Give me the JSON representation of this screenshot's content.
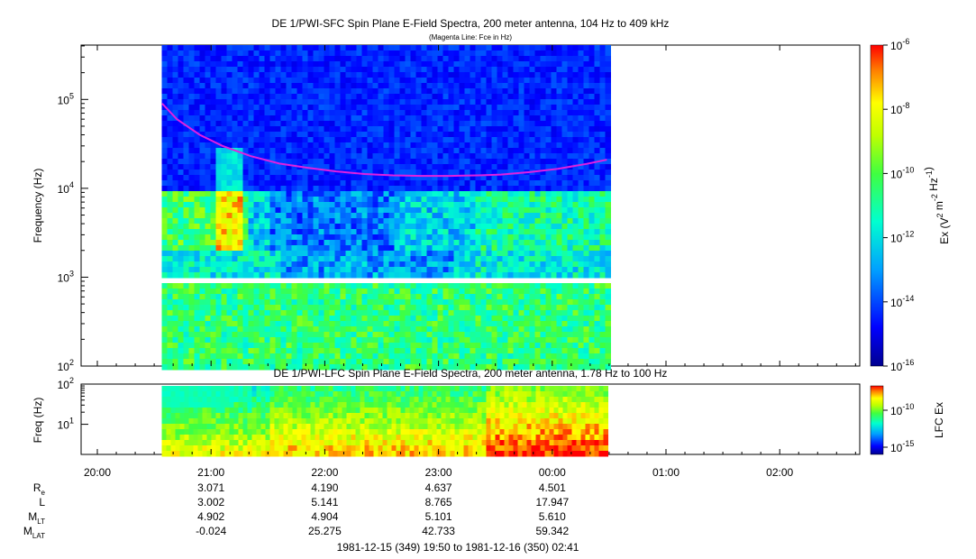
{
  "header": {
    "title": "DE 1/PWI-SFC  Spin Plane E-Field Spectra, 200 meter antenna, 104 Hz to 409 kHz",
    "subtitle": "(Magenta Line: Fce in Hz)"
  },
  "chart_data": [
    {
      "type": "heatmap",
      "name": "sfc",
      "xlabel": "",
      "ylabel": "Frequency (Hz)",
      "yscale": "log",
      "ylim": [
        100,
        409000
      ],
      "y_ticks": [
        "10^2",
        "10^3",
        "10^4",
        "10^5"
      ],
      "data_window": [
        "20:34",
        "00:29"
      ],
      "colorbar": {
        "label": "Ex (V^2 m^-2 Hz^-1)",
        "ticks": [
          "10^-6",
          "10^-8",
          "10^-10",
          "10^-12",
          "10^-14",
          "10^-16"
        ],
        "range": [
          -16,
          -6
        ]
      },
      "fce_line": {
        "color": "#e020e0",
        "hours_after_2000": [
          0.57,
          0.7,
          0.9,
          1.1,
          1.35,
          1.6,
          1.85,
          2.1,
          2.35,
          2.6,
          2.85,
          3.1,
          3.35,
          3.55,
          3.8,
          4.05,
          4.3,
          4.48
        ],
        "hz": [
          90000,
          60000,
          40000,
          30000,
          23000,
          19000,
          17000,
          15500,
          14500,
          14000,
          13800,
          13800,
          14000,
          14300,
          15200,
          16600,
          18800,
          21000
        ]
      }
    },
    {
      "type": "heatmap",
      "name": "lfc",
      "title": "DE 1/PWI-LFC  Spin Plane E-Field Spectra, 200 meter antenna, 1.78 Hz to 100 Hz",
      "ylabel": "Freq (Hz)",
      "yscale": "log",
      "ylim": [
        1.78,
        100
      ],
      "y_ticks": [
        "10^1",
        "10^2"
      ],
      "data_window": [
        "20:34",
        "00:29"
      ],
      "colorbar": {
        "label": "LFC Ex",
        "ticks": [
          "10^-10",
          "10^-15"
        ]
      }
    }
  ],
  "time_axis": {
    "ticks": [
      "20:00",
      "21:00",
      "22:00",
      "23:00",
      "00:00",
      "01:00",
      "02:00"
    ],
    "range_label": "1981-12-15 (349) 19:50 to 1981-12-16 (350) 02:41"
  },
  "ephemeris": {
    "rows": [
      {
        "label": "R",
        "sub": "e",
        "values": [
          "3.071",
          "4.190",
          "4.637",
          "4.501"
        ]
      },
      {
        "label": "L",
        "sub": "",
        "values": [
          "3.002",
          "5.141",
          "8.765",
          "17.947"
        ]
      },
      {
        "label": "M",
        "sub": "LT",
        "values": [
          "4.902",
          "4.904",
          "5.101",
          "5.610"
        ]
      },
      {
        "label": "M",
        "sub": "LAT",
        "values": [
          "-0.024",
          "25.275",
          "42.733",
          "59.342"
        ]
      }
    ]
  }
}
